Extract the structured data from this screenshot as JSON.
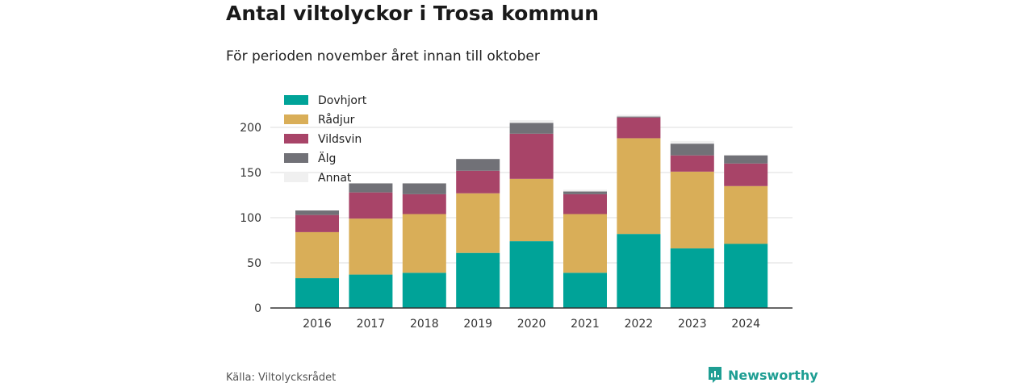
{
  "header": {
    "title": "Antal viltolyckor i Trosa kommun",
    "subtitle": "För perioden november året innan till oktober"
  },
  "footer": {
    "source": "Källa: Viltolycksrådet",
    "brand": "Newsworthy",
    "brand_icon": "bar-chart-speech-icon"
  },
  "colors": {
    "Dovhjort": "#00a398",
    "Rådjur": "#d9ae58",
    "Vildsvin": "#a84468",
    "Älg": "#717177",
    "Annat": "#f0f0f0",
    "brand": "#1e9e93"
  },
  "chart_data": {
    "type": "bar",
    "stacked": true,
    "categories": [
      "2016",
      "2017",
      "2018",
      "2019",
      "2020",
      "2021",
      "2022",
      "2023",
      "2024"
    ],
    "series": [
      {
        "name": "Dovhjort",
        "values": [
          33,
          37,
          39,
          61,
          74,
          39,
          82,
          66,
          71
        ]
      },
      {
        "name": "Rådjur",
        "values": [
          51,
          62,
          65,
          66,
          69,
          65,
          106,
          85,
          64
        ]
      },
      {
        "name": "Vildsvin",
        "values": [
          19,
          29,
          22,
          25,
          50,
          22,
          23,
          18,
          25
        ]
      },
      {
        "name": "Älg",
        "values": [
          5,
          10,
          12,
          13,
          12,
          3,
          1,
          13,
          9
        ]
      },
      {
        "name": "Annat",
        "values": [
          0,
          0,
          0,
          0,
          3,
          2,
          2,
          3,
          0
        ]
      }
    ],
    "y_ticks": [
      0,
      50,
      100,
      150,
      200
    ],
    "ylim": [
      0,
      220
    ],
    "grid": true,
    "legend_position": "top-left"
  }
}
